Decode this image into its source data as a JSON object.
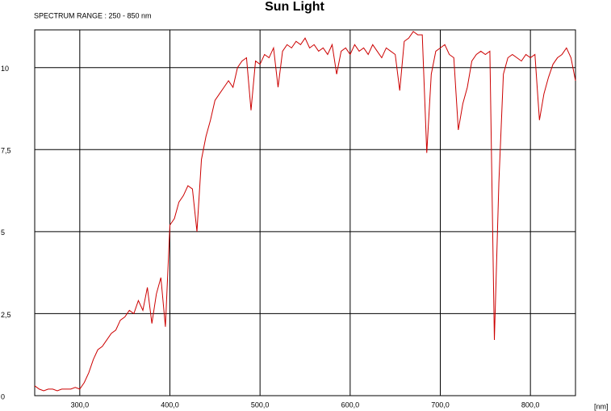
{
  "chart_data": {
    "type": "line",
    "title": "Sun Light",
    "subtitle": "SPECTRUM RANGE : 250 - 850 nm",
    "x_label": "[nm]",
    "xlim": [
      250,
      850
    ],
    "ylim": [
      0,
      11.15
    ],
    "xticks": [
      {
        "value": 300,
        "label": "300,0"
      },
      {
        "value": 400,
        "label": "400,0"
      },
      {
        "value": 500,
        "label": "500,0"
      },
      {
        "value": 600,
        "label": "600,0"
      },
      {
        "value": 700,
        "label": "700,0"
      },
      {
        "value": 800,
        "label": "800,0"
      }
    ],
    "yticks": [
      0,
      {
        "value": 2.5,
        "label": "2,5"
      },
      5,
      {
        "value": 7.5,
        "label": "7,5"
      },
      10
    ],
    "grid": true,
    "x": [
      250,
      255,
      260,
      265,
      270,
      275,
      280,
      285,
      290,
      295,
      300,
      305,
      310,
      315,
      320,
      325,
      330,
      335,
      340,
      345,
      350,
      355,
      360,
      365,
      370,
      375,
      380,
      385,
      390,
      395,
      400,
      405,
      410,
      415,
      420,
      425,
      430,
      435,
      440,
      445,
      450,
      455,
      460,
      465,
      470,
      475,
      480,
      485,
      490,
      495,
      500,
      505,
      510,
      515,
      520,
      525,
      530,
      535,
      540,
      545,
      550,
      555,
      560,
      565,
      570,
      575,
      580,
      585,
      590,
      595,
      600,
      605,
      610,
      615,
      620,
      625,
      630,
      635,
      640,
      645,
      650,
      655,
      660,
      665,
      670,
      675,
      680,
      685,
      690,
      695,
      700,
      705,
      710,
      715,
      720,
      725,
      730,
      735,
      740,
      745,
      750,
      755,
      760,
      765,
      770,
      775,
      780,
      785,
      790,
      795,
      800,
      805,
      810,
      815,
      820,
      825,
      830,
      835,
      840,
      845,
      850
    ],
    "series": [
      {
        "name": "Sun Light",
        "color": "#cc0000",
        "values": [
          0.3,
          0.2,
          0.15,
          0.2,
          0.2,
          0.15,
          0.2,
          0.2,
          0.2,
          0.25,
          0.2,
          0.4,
          0.7,
          1.1,
          1.4,
          1.5,
          1.7,
          1.9,
          2.0,
          2.3,
          2.4,
          2.6,
          2.5,
          2.9,
          2.6,
          3.3,
          2.2,
          3.1,
          3.6,
          2.1,
          5.2,
          5.4,
          5.9,
          6.1,
          6.4,
          6.3,
          5.0,
          7.2,
          7.9,
          8.4,
          9.0,
          9.2,
          9.4,
          9.6,
          9.4,
          10.0,
          10.2,
          10.3,
          8.7,
          10.2,
          10.1,
          10.4,
          10.3,
          10.6,
          9.4,
          10.5,
          10.7,
          10.6,
          10.8,
          10.7,
          10.9,
          10.6,
          10.7,
          10.5,
          10.6,
          10.4,
          10.7,
          9.8,
          10.5,
          10.6,
          10.4,
          10.7,
          10.5,
          10.6,
          10.4,
          10.7,
          10.5,
          10.3,
          10.6,
          10.5,
          10.4,
          9.3,
          10.8,
          10.9,
          11.1,
          11.0,
          11.0,
          7.4,
          9.8,
          10.5,
          10.6,
          10.7,
          10.4,
          10.3,
          8.1,
          8.9,
          9.4,
          10.2,
          10.4,
          10.5,
          10.4,
          10.5,
          1.7,
          6.5,
          9.8,
          10.3,
          10.4,
          10.3,
          10.2,
          10.4,
          10.3,
          10.4,
          8.4,
          9.2,
          9.7,
          10.1,
          10.3,
          10.4,
          10.6,
          10.3,
          9.6
        ]
      }
    ]
  }
}
